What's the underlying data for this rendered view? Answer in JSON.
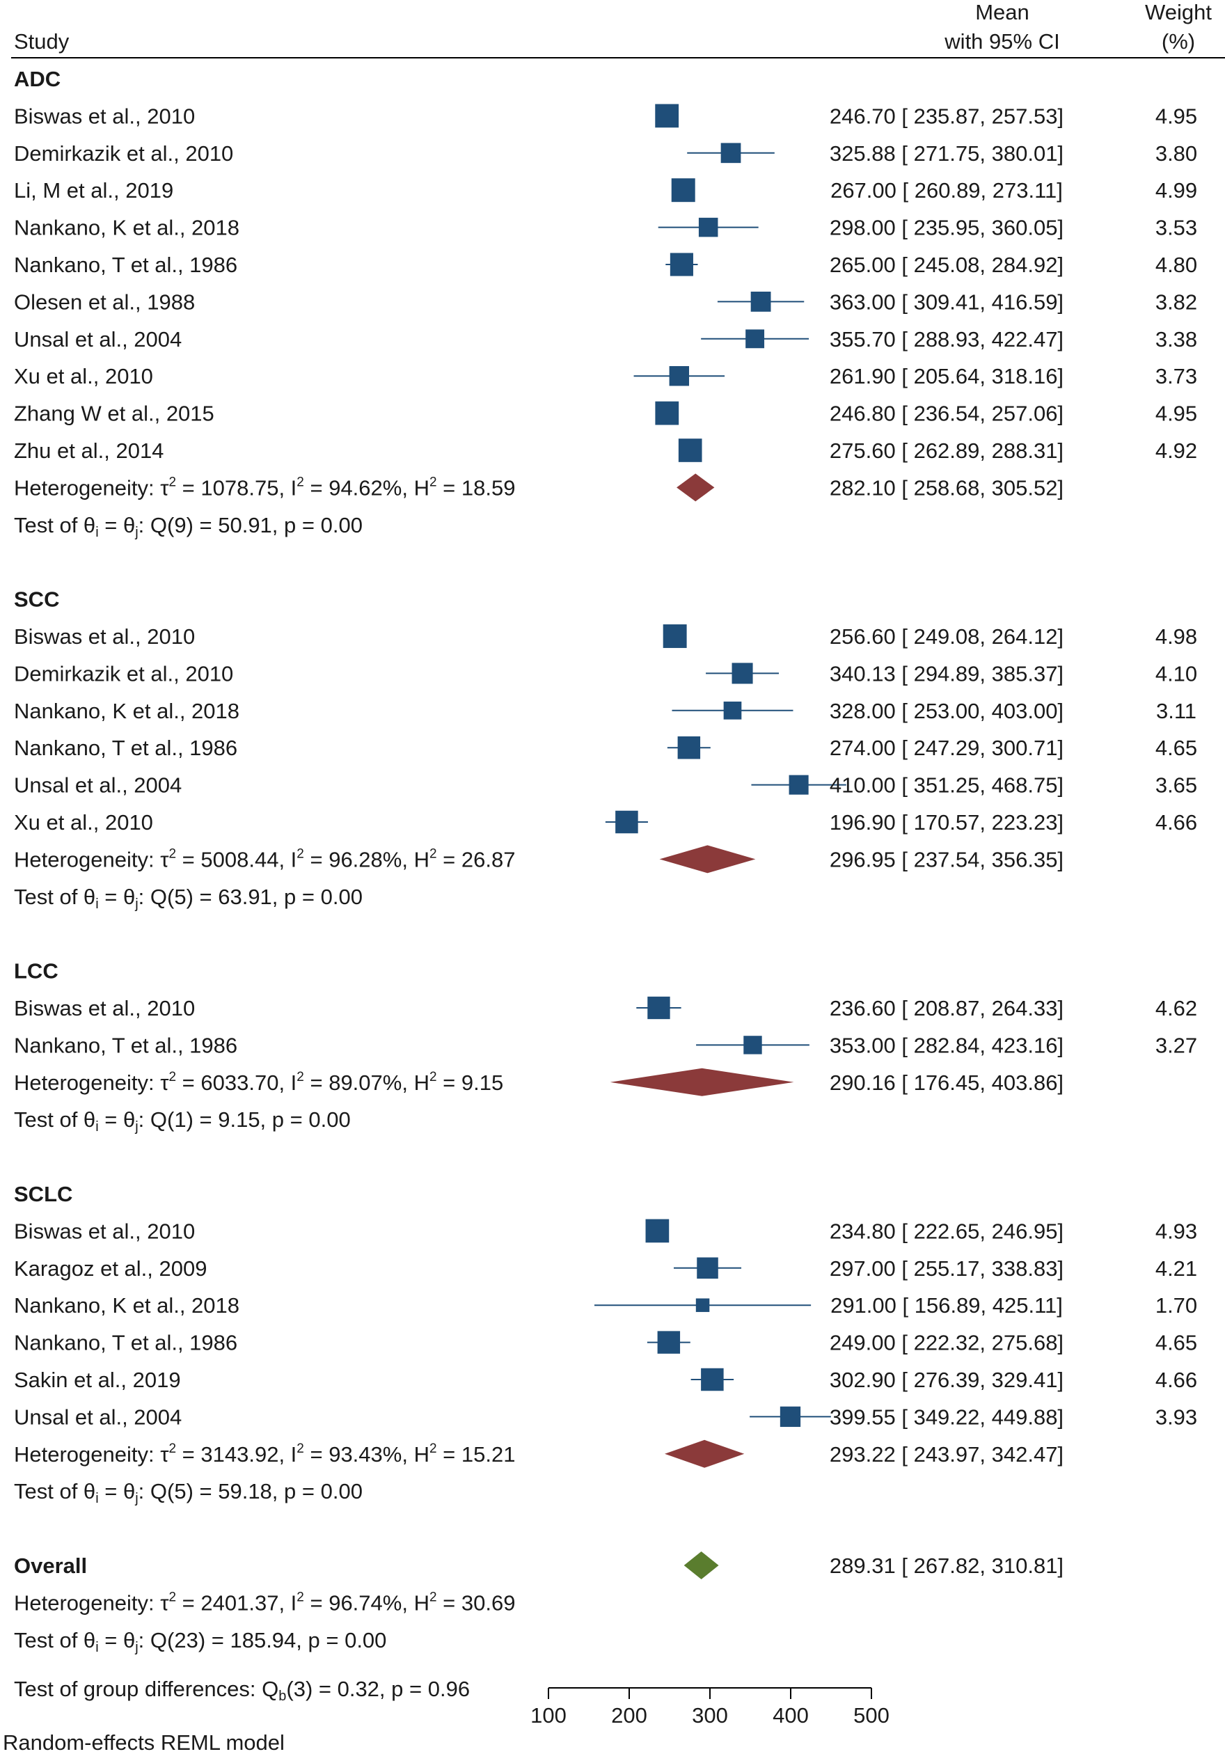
{
  "colors": {
    "study_marker": "#1f4e79",
    "subgroup_diamond": "#8b3a3a",
    "overall_diamond": "#5a7d2e",
    "text": "#1a1a1a"
  },
  "header": {
    "study": "Study",
    "mean_line1": "Mean",
    "mean_line2": "with 95% CI",
    "weight_line1": "Weight",
    "weight_line2": "(%)"
  },
  "chart_data": {
    "type": "forest",
    "xlim": [
      100,
      500
    ],
    "xticks": [
      100,
      200,
      300,
      400,
      500
    ],
    "groups": [
      {
        "name": "ADC",
        "studies": [
          {
            "label": "Biswas et al., 2010",
            "mean": 246.7,
            "lo": 235.87,
            "hi": 257.53,
            "weight": 4.95,
            "ci_text": "246.70 [  235.87,  257.53]",
            "weight_text": "4.95"
          },
          {
            "label": "Demirkazik et al., 2010",
            "mean": 325.88,
            "lo": 271.75,
            "hi": 380.01,
            "weight": 3.8,
            "ci_text": "325.88 [  271.75,  380.01]",
            "weight_text": "3.80"
          },
          {
            "label": "Li, M et al., 2019",
            "mean": 267.0,
            "lo": 260.89,
            "hi": 273.11,
            "weight": 4.99,
            "ci_text": "267.00 [  260.89,  273.11]",
            "weight_text": "4.99"
          },
          {
            "label": "Nankano, K et al., 2018",
            "mean": 298.0,
            "lo": 235.95,
            "hi": 360.05,
            "weight": 3.53,
            "ci_text": "298.00 [  235.95,  360.05]",
            "weight_text": "3.53"
          },
          {
            "label": "Nankano, T et al., 1986",
            "mean": 265.0,
            "lo": 245.08,
            "hi": 284.92,
            "weight": 4.8,
            "ci_text": "265.00 [  245.08,  284.92]",
            "weight_text": "4.80"
          },
          {
            "label": "Olesen et al., 1988",
            "mean": 363.0,
            "lo": 309.41,
            "hi": 416.59,
            "weight": 3.82,
            "ci_text": "363.00 [  309.41,  416.59]",
            "weight_text": "3.82"
          },
          {
            "label": "Unsal et al., 2004",
            "mean": 355.7,
            "lo": 288.93,
            "hi": 422.47,
            "weight": 3.38,
            "ci_text": "355.70 [  288.93,  422.47]",
            "weight_text": "3.38"
          },
          {
            "label": "Xu et al., 2010",
            "mean": 261.9,
            "lo": 205.64,
            "hi": 318.16,
            "weight": 3.73,
            "ci_text": "261.90 [  205.64,  318.16]",
            "weight_text": "3.73"
          },
          {
            "label": "Zhang W et al., 2015",
            "mean": 246.8,
            "lo": 236.54,
            "hi": 257.06,
            "weight": 4.95,
            "ci_text": "246.80 [  236.54,  257.06]",
            "weight_text": "4.95"
          },
          {
            "label": "Zhu et al., 2014",
            "mean": 275.6,
            "lo": 262.89,
            "hi": 288.31,
            "weight": 4.92,
            "ci_text": "275.60 [  262.89,  288.31]",
            "weight_text": "4.92"
          }
        ],
        "pooled": {
          "mean": 282.1,
          "lo": 258.68,
          "hi": 305.52,
          "ci_text": "282.10 [  258.68,  305.52]"
        },
        "heterogeneity": {
          "tau2": "1078.75",
          "i2": "94.62%",
          "h2": "18.59"
        },
        "test": {
          "df": "9",
          "q": "50.91",
          "p": "0.00"
        }
      },
      {
        "name": "SCC",
        "studies": [
          {
            "label": "Biswas et al., 2010",
            "mean": 256.6,
            "lo": 249.08,
            "hi": 264.12,
            "weight": 4.98,
            "ci_text": "256.60 [  249.08,  264.12]",
            "weight_text": "4.98"
          },
          {
            "label": "Demirkazik et al., 2010",
            "mean": 340.13,
            "lo": 294.89,
            "hi": 385.37,
            "weight": 4.1,
            "ci_text": "340.13 [  294.89,  385.37]",
            "weight_text": "4.10"
          },
          {
            "label": "Nankano, K et al., 2018",
            "mean": 328.0,
            "lo": 253.0,
            "hi": 403.0,
            "weight": 3.11,
            "ci_text": "328.00 [  253.00,  403.00]",
            "weight_text": "3.11"
          },
          {
            "label": "Nankano, T et al., 1986",
            "mean": 274.0,
            "lo": 247.29,
            "hi": 300.71,
            "weight": 4.65,
            "ci_text": "274.00 [  247.29,  300.71]",
            "weight_text": "4.65"
          },
          {
            "label": "Unsal et al., 2004",
            "mean": 410.0,
            "lo": 351.25,
            "hi": 468.75,
            "weight": 3.65,
            "ci_text": "410.00 [  351.25,  468.75]",
            "weight_text": "3.65"
          },
          {
            "label": "Xu et al., 2010",
            "mean": 196.9,
            "lo": 170.57,
            "hi": 223.23,
            "weight": 4.66,
            "ci_text": "196.90 [  170.57,  223.23]",
            "weight_text": "4.66"
          }
        ],
        "pooled": {
          "mean": 296.95,
          "lo": 237.54,
          "hi": 356.35,
          "ci_text": "296.95 [  237.54,  356.35]"
        },
        "heterogeneity": {
          "tau2": "5008.44",
          "i2": "96.28%",
          "h2": "26.87"
        },
        "test": {
          "df": "5",
          "q": "63.91",
          "p": "0.00"
        }
      },
      {
        "name": "LCC",
        "studies": [
          {
            "label": "Biswas et al., 2010",
            "mean": 236.6,
            "lo": 208.87,
            "hi": 264.33,
            "weight": 4.62,
            "ci_text": "236.60 [  208.87,  264.33]",
            "weight_text": "4.62"
          },
          {
            "label": "Nankano, T et al., 1986",
            "mean": 353.0,
            "lo": 282.84,
            "hi": 423.16,
            "weight": 3.27,
            "ci_text": "353.00 [  282.84,  423.16]",
            "weight_text": "3.27"
          }
        ],
        "pooled": {
          "mean": 290.16,
          "lo": 176.45,
          "hi": 403.86,
          "ci_text": "290.16 [  176.45,  403.86]"
        },
        "heterogeneity": {
          "tau2": "6033.70",
          "i2": "89.07%",
          "h2": "9.15"
        },
        "test": {
          "df": "1",
          "q": "9.15",
          "p": "0.00"
        }
      },
      {
        "name": "SCLC",
        "studies": [
          {
            "label": "Biswas et al., 2010",
            "mean": 234.8,
            "lo": 222.65,
            "hi": 246.95,
            "weight": 4.93,
            "ci_text": "234.80 [  222.65,  246.95]",
            "weight_text": "4.93"
          },
          {
            "label": "Karagoz et al., 2009",
            "mean": 297.0,
            "lo": 255.17,
            "hi": 338.83,
            "weight": 4.21,
            "ci_text": "297.00 [  255.17,  338.83]",
            "weight_text": "4.21"
          },
          {
            "label": "Nankano, K et al., 2018",
            "mean": 291.0,
            "lo": 156.89,
            "hi": 425.11,
            "weight": 1.7,
            "ci_text": "291.00 [  156.89,  425.11]",
            "weight_text": "1.70"
          },
          {
            "label": "Nankano, T et al., 1986",
            "mean": 249.0,
            "lo": 222.32,
            "hi": 275.68,
            "weight": 4.65,
            "ci_text": "249.00 [  222.32,  275.68]",
            "weight_text": "4.65"
          },
          {
            "label": "Sakin et al., 2019",
            "mean": 302.9,
            "lo": 276.39,
            "hi": 329.41,
            "weight": 4.66,
            "ci_text": "302.90 [  276.39,  329.41]",
            "weight_text": "4.66"
          },
          {
            "label": "Unsal et al., 2004",
            "mean": 399.55,
            "lo": 349.22,
            "hi": 449.88,
            "weight": 3.93,
            "ci_text": "399.55 [  349.22,  449.88]",
            "weight_text": "3.93"
          }
        ],
        "pooled": {
          "mean": 293.22,
          "lo": 243.97,
          "hi": 342.47,
          "ci_text": "293.22 [  243.97,  342.47]"
        },
        "heterogeneity": {
          "tau2": "3143.92",
          "i2": "93.43%",
          "h2": "15.21"
        },
        "test": {
          "df": "5",
          "q": "59.18",
          "p": "0.00"
        }
      }
    ],
    "overall": {
      "label": "Overall",
      "mean": 289.31,
      "lo": 267.82,
      "hi": 310.81,
      "ci_text": "289.31 [  267.82,  310.81]",
      "heterogeneity": {
        "tau2": "2401.37",
        "i2": "96.74%",
        "h2": "30.69"
      },
      "test": {
        "df": "23",
        "q": "185.94",
        "p": "0.00"
      }
    },
    "group_difference": {
      "df": "3",
      "q": "0.32",
      "p": "0.96"
    },
    "footnote": "Random-effects REML model"
  }
}
